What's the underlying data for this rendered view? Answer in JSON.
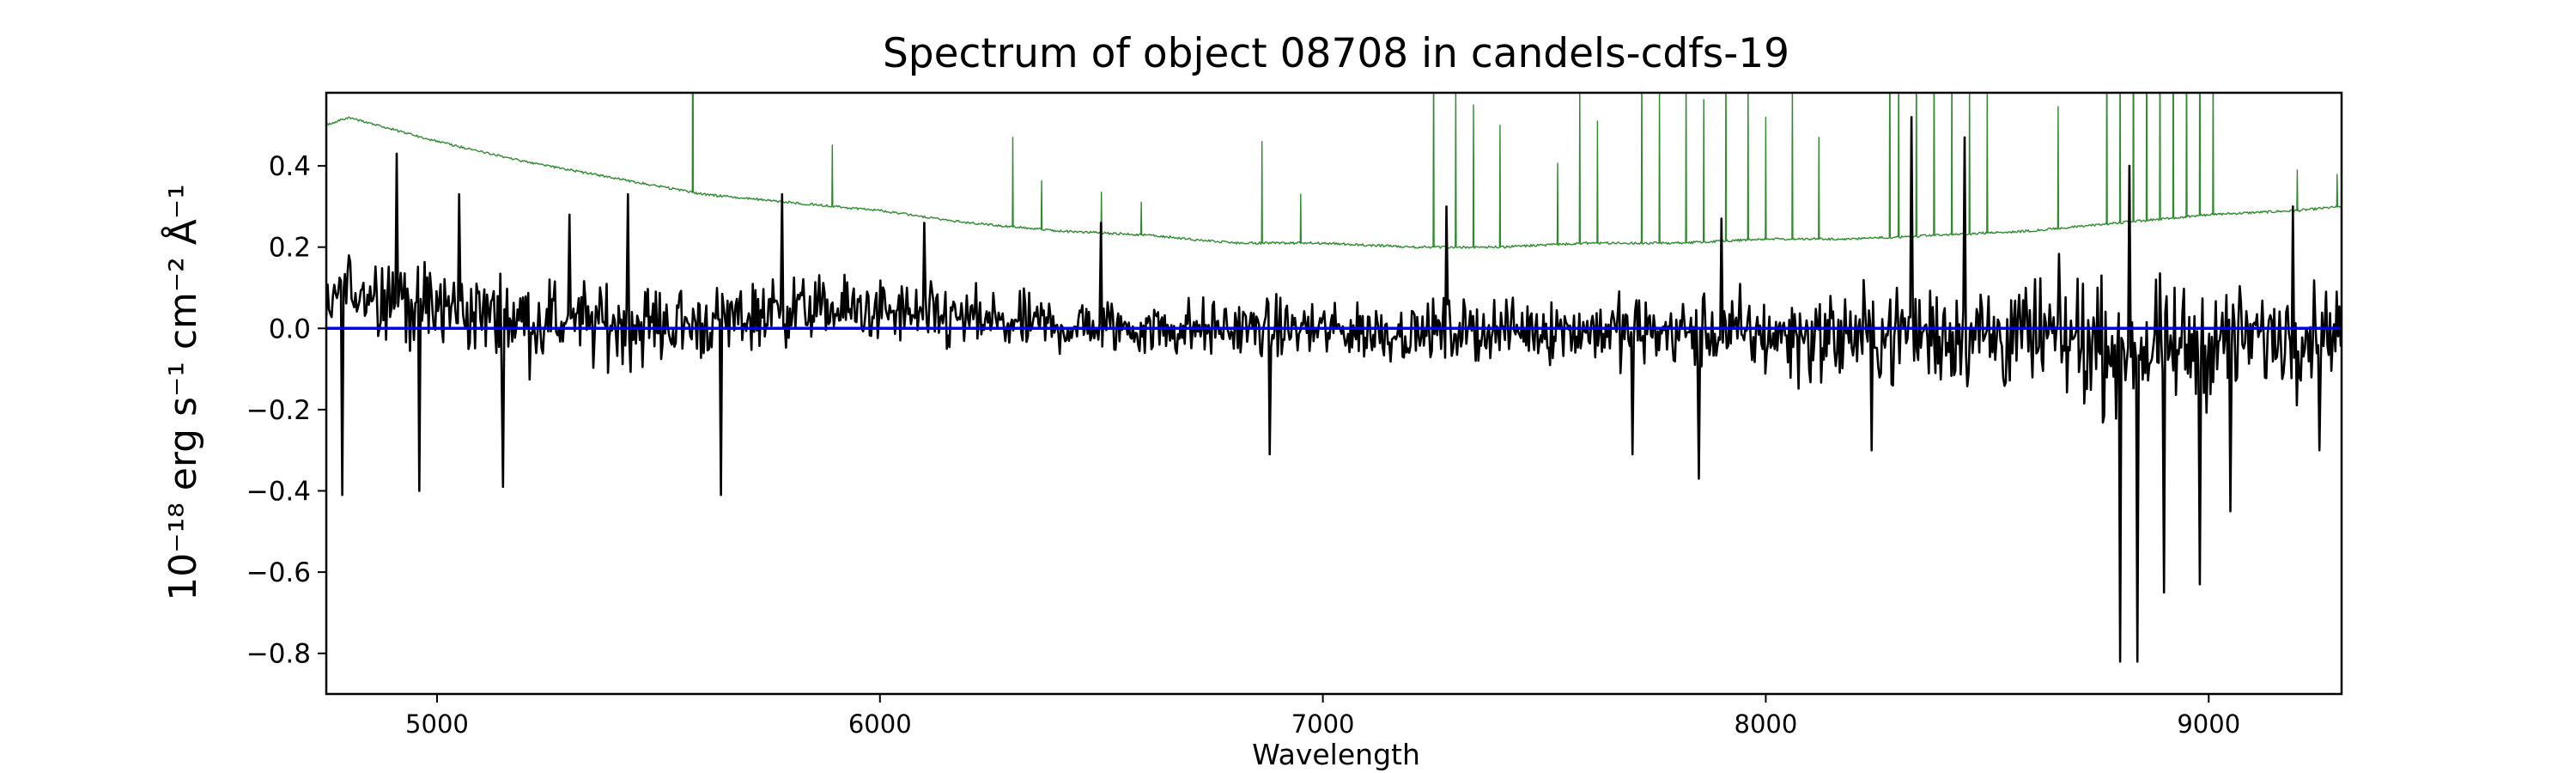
{
  "chart_data": {
    "type": "line",
    "title": "Spectrum of object 08708 in candels-cdfs-19",
    "xlabel": "Wavelength",
    "ylabel": "10⁻¹⁸ erg s⁻¹ cm⁻² Å⁻¹",
    "xlim": [
      4750,
      9300
    ],
    "ylim": [
      -0.9,
      0.58
    ],
    "xticks": [
      5000,
      6000,
      7000,
      8000,
      9000
    ],
    "yticks": [
      -0.8,
      -0.6,
      -0.4,
      -0.2,
      0.0,
      0.2,
      0.4
    ],
    "ytick_labels": [
      "−0.8",
      "−0.6",
      "−0.4",
      "−0.2",
      "0.0",
      "0.2",
      "0.4"
    ],
    "grid": false,
    "series": [
      {
        "color": "#000000",
        "style": "noisy",
        "points": [
          [
            4750,
            0.05
          ],
          [
            4800,
            0.1
          ],
          [
            4900,
            0.08
          ],
          [
            5000,
            0.05
          ],
          [
            5200,
            0.02
          ],
          [
            5400,
            0.01
          ],
          [
            5600,
            0.01
          ],
          [
            5800,
            0.05
          ],
          [
            6000,
            0.04
          ],
          [
            6300,
            0.01
          ],
          [
            6600,
            0.0
          ],
          [
            6900,
            0.0
          ],
          [
            7200,
            -0.01
          ],
          [
            7500,
            0.0
          ],
          [
            7800,
            -0.01
          ],
          [
            8100,
            -0.02
          ],
          [
            8400,
            -0.01
          ],
          [
            8700,
            -0.03
          ],
          [
            8900,
            -0.05
          ],
          [
            9300,
            0.0
          ]
        ],
        "noise": [
          [
            4750,
            0.11
          ],
          [
            5000,
            0.14
          ],
          [
            5500,
            0.12
          ],
          [
            6000,
            0.1
          ],
          [
            6500,
            0.09
          ],
          [
            7000,
            0.09
          ],
          [
            7500,
            0.1
          ],
          [
            8000,
            0.13
          ],
          [
            8400,
            0.17
          ],
          [
            8800,
            0.2
          ],
          [
            9300,
            0.14
          ]
        ],
        "spikes": [
          [
            4785,
            -0.41
          ],
          [
            4910,
            0.43
          ],
          [
            4960,
            -0.4
          ],
          [
            5050,
            0.33
          ],
          [
            5150,
            -0.39
          ],
          [
            5300,
            0.28
          ],
          [
            5430,
            0.33
          ],
          [
            5640,
            -0.41
          ],
          [
            5780,
            0.33
          ],
          [
            6100,
            0.26
          ],
          [
            6500,
            0.26
          ],
          [
            6880,
            -0.31
          ],
          [
            7280,
            0.3
          ],
          [
            7700,
            -0.31
          ],
          [
            7850,
            -0.37
          ],
          [
            7900,
            0.27
          ],
          [
            8240,
            -0.3
          ],
          [
            8330,
            0.52
          ],
          [
            8450,
            0.47
          ],
          [
            8800,
            -0.82
          ],
          [
            8820,
            0.4
          ],
          [
            8840,
            -0.82
          ],
          [
            8900,
            -0.65
          ],
          [
            8980,
            -0.63
          ],
          [
            9050,
            -0.45
          ],
          [
            9190,
            0.3
          ],
          [
            9250,
            -0.3
          ]
        ]
      },
      {
        "color": "#2e8b2e",
        "style": "sky",
        "points": [
          [
            4750,
            0.5
          ],
          [
            4800,
            0.52
          ],
          [
            5000,
            0.46
          ],
          [
            5200,
            0.41
          ],
          [
            5400,
            0.37
          ],
          [
            5600,
            0.33
          ],
          [
            5800,
            0.31
          ],
          [
            6000,
            0.29
          ],
          [
            6200,
            0.26
          ],
          [
            6400,
            0.24
          ],
          [
            6600,
            0.23
          ],
          [
            6800,
            0.21
          ],
          [
            7000,
            0.21
          ],
          [
            7200,
            0.2
          ],
          [
            7400,
            0.2
          ],
          [
            7600,
            0.21
          ],
          [
            7800,
            0.21
          ],
          [
            8000,
            0.22
          ],
          [
            8200,
            0.22
          ],
          [
            8400,
            0.23
          ],
          [
            8600,
            0.24
          ],
          [
            8800,
            0.26
          ],
          [
            9000,
            0.28
          ],
          [
            9200,
            0.29
          ],
          [
            9300,
            0.3
          ]
        ],
        "lines": [
          [
            5577,
            0.9
          ],
          [
            5892,
            0.15
          ],
          [
            6300,
            0.22
          ],
          [
            6364,
            0.12
          ],
          [
            6500,
            0.1
          ],
          [
            6590,
            0.08
          ],
          [
            6863,
            0.25
          ],
          [
            6950,
            0.12
          ],
          [
            7250,
            0.5
          ],
          [
            7300,
            0.4
          ],
          [
            7340,
            0.35
          ],
          [
            7400,
            0.3
          ],
          [
            7530,
            0.2
          ],
          [
            7580,
            0.4
          ],
          [
            7620,
            0.3
          ],
          [
            7720,
            0.5
          ],
          [
            7760,
            0.4
          ],
          [
            7820,
            0.45
          ],
          [
            7860,
            0.35
          ],
          [
            7910,
            0.5
          ],
          [
            7960,
            0.4
          ],
          [
            8000,
            0.3
          ],
          [
            8060,
            0.4
          ],
          [
            8120,
            0.25
          ],
          [
            8280,
            0.6
          ],
          [
            8300,
            0.55
          ],
          [
            8340,
            0.5
          ],
          [
            8380,
            0.5
          ],
          [
            8420,
            0.45
          ],
          [
            8460,
            0.4
          ],
          [
            8500,
            0.35
          ],
          [
            8660,
            0.3
          ],
          [
            8770,
            0.6
          ],
          [
            8800,
            0.5
          ],
          [
            8830,
            0.7
          ],
          [
            8860,
            0.6
          ],
          [
            8890,
            0.5
          ],
          [
            8920,
            0.6
          ],
          [
            8950,
            0.5
          ],
          [
            8980,
            0.6
          ],
          [
            9010,
            0.4
          ],
          [
            9200,
            0.1
          ],
          [
            9290,
            0.08
          ]
        ]
      },
      {
        "color": "#0000ff",
        "style": "flat",
        "points": [
          [
            4750,
            0.0
          ],
          [
            9300,
            0.0
          ]
        ]
      }
    ]
  }
}
